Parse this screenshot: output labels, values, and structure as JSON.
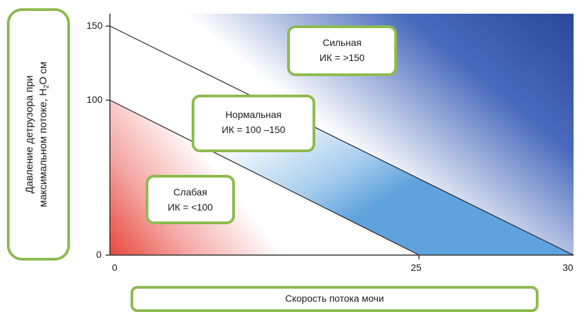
{
  "yaxis": {
    "label_line1": "Давление детрузора при",
    "label_line2_pre": "максимальном потоке,  H",
    "label_sub": "2",
    "label_line2_post": "O см",
    "ticks": [
      "150",
      "100",
      "0"
    ]
  },
  "xaxis": {
    "label": "Скорость потока мочи",
    "ticks": [
      "0",
      "25",
      "30"
    ]
  },
  "zones": [
    {
      "name": "Сильная",
      "index": "ИК = >150"
    },
    {
      "name": "Нормальная",
      "index": "ИК = 100 –150"
    },
    {
      "name": "Слабая",
      "index": "ИК = <100"
    }
  ],
  "colors": {
    "strong": "#2f4e9f",
    "normal": "#6aa8dd",
    "weak": "#e8473c",
    "frame": "#8dbb50"
  }
}
